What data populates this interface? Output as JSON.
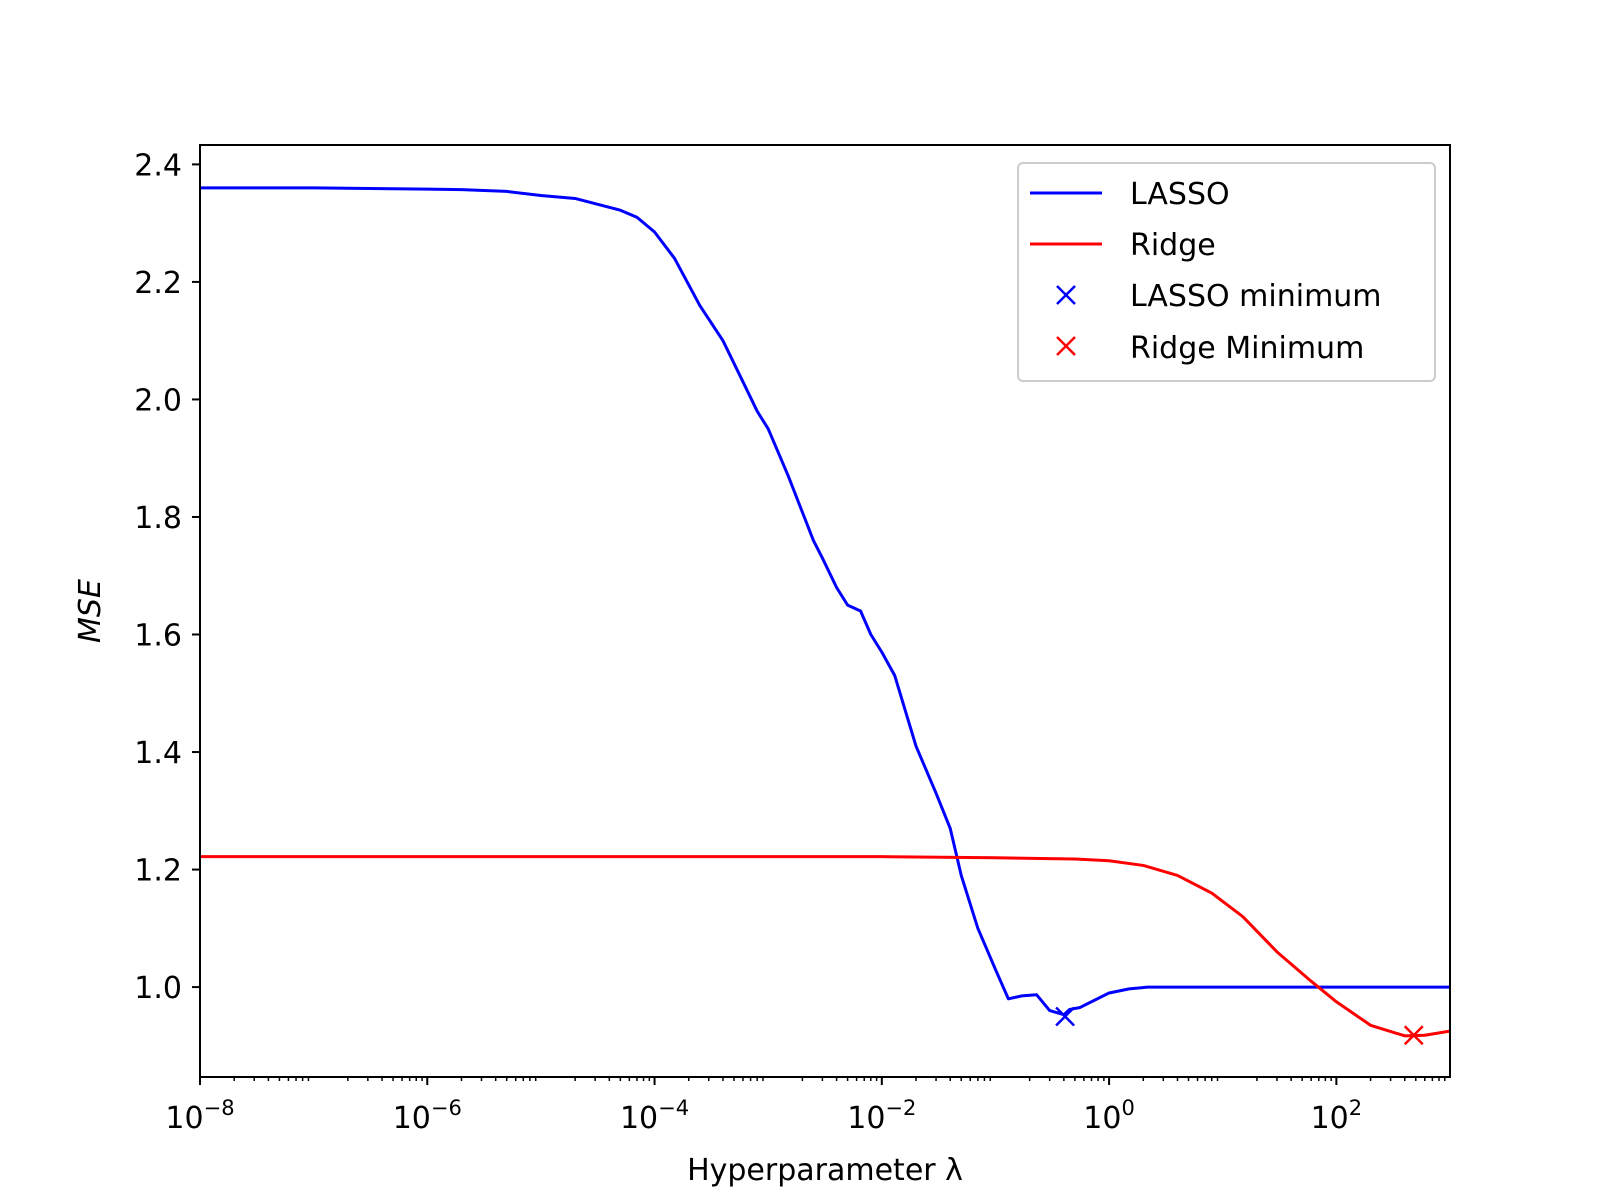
{
  "chart_data": {
    "type": "line",
    "title": "",
    "xlabel": "Hyperparameter λ",
    "ylabel": "MSE",
    "xscale": "log",
    "xlim": [
      1e-08,
      1000
    ],
    "ylim": [
      0.847,
      2.433
    ],
    "x_ticks": [
      {
        "value": 1e-08,
        "base": "10",
        "exp": "−8"
      },
      {
        "value": 1e-06,
        "base": "10",
        "exp": "−6"
      },
      {
        "value": 0.0001,
        "base": "10",
        "exp": "−4"
      },
      {
        "value": 0.01,
        "base": "10",
        "exp": "−2"
      },
      {
        "value": 1,
        "base": "10",
        "exp": "0"
      },
      {
        "value": 100,
        "base": "10",
        "exp": "2"
      }
    ],
    "y_ticks": [
      {
        "value": 1.0,
        "label": "1.0"
      },
      {
        "value": 1.2,
        "label": "1.2"
      },
      {
        "value": 1.4,
        "label": "1.4"
      },
      {
        "value": 1.6,
        "label": "1.6"
      },
      {
        "value": 1.8,
        "label": "1.8"
      },
      {
        "value": 2.0,
        "label": "2.0"
      },
      {
        "value": 2.2,
        "label": "2.2"
      },
      {
        "value": 2.4,
        "label": "2.4"
      }
    ],
    "grid": false,
    "legend_position": "upper right",
    "series": [
      {
        "name": "LASSO",
        "color": "#0000ff",
        "kind": "line",
        "points": [
          [
            1e-08,
            2.36
          ],
          [
            1e-07,
            2.36
          ],
          [
            1e-06,
            2.358
          ],
          [
            2e-06,
            2.357
          ],
          [
            5e-06,
            2.354
          ],
          [
            1e-05,
            2.347
          ],
          [
            2e-05,
            2.342
          ],
          [
            5e-05,
            2.322
          ],
          [
            7e-05,
            2.31
          ],
          [
            0.0001,
            2.285
          ],
          [
            0.00015,
            2.24
          ],
          [
            0.00025,
            2.16
          ],
          [
            0.0004,
            2.1
          ],
          [
            0.0006,
            2.03
          ],
          [
            0.0008,
            1.98
          ],
          [
            0.001,
            1.95
          ],
          [
            0.0015,
            1.87
          ],
          [
            0.0025,
            1.76
          ],
          [
            0.003,
            1.73
          ],
          [
            0.004,
            1.68
          ],
          [
            0.005,
            1.65
          ],
          [
            0.0065,
            1.64
          ],
          [
            0.008,
            1.6
          ],
          [
            0.01,
            1.57
          ],
          [
            0.013,
            1.53
          ],
          [
            0.02,
            1.41
          ],
          [
            0.03,
            1.33
          ],
          [
            0.04,
            1.27
          ],
          [
            0.05,
            1.19
          ],
          [
            0.07,
            1.1
          ],
          [
            0.1,
            1.03
          ],
          [
            0.13,
            0.98
          ],
          [
            0.17,
            0.985
          ],
          [
            0.23,
            0.987
          ],
          [
            0.3,
            0.96
          ],
          [
            0.4,
            0.953
          ],
          [
            0.45,
            0.962
          ],
          [
            0.55,
            0.965
          ],
          [
            0.7,
            0.975
          ],
          [
            1.0,
            0.99
          ],
          [
            1.5,
            0.997
          ],
          [
            2.2,
            1.0
          ],
          [
            10,
            1.0
          ],
          [
            100,
            1.0
          ],
          [
            1000,
            1.0
          ]
        ]
      },
      {
        "name": "Ridge",
        "color": "#ff0000",
        "kind": "line",
        "points": [
          [
            1e-08,
            1.222
          ],
          [
            0.0001,
            1.222
          ],
          [
            0.01,
            1.222
          ],
          [
            0.1,
            1.22
          ],
          [
            0.5,
            1.218
          ],
          [
            1.0,
            1.215
          ],
          [
            2.0,
            1.207
          ],
          [
            4.0,
            1.19
          ],
          [
            8.0,
            1.16
          ],
          [
            15,
            1.12
          ],
          [
            30,
            1.06
          ],
          [
            60,
            1.01
          ],
          [
            100,
            0.975
          ],
          [
            200,
            0.935
          ],
          [
            400,
            0.917
          ],
          [
            600,
            0.918
          ],
          [
            1000,
            0.925
          ]
        ]
      },
      {
        "name": "LASSO minimum",
        "color": "#0000ff",
        "kind": "marker",
        "marker": "x",
        "points": [
          [
            0.41,
            0.95
          ]
        ]
      },
      {
        "name": "Ridge Minimum",
        "color": "#ff0000",
        "kind": "marker",
        "marker": "x",
        "points": [
          [
            480,
            0.918
          ]
        ]
      }
    ]
  }
}
